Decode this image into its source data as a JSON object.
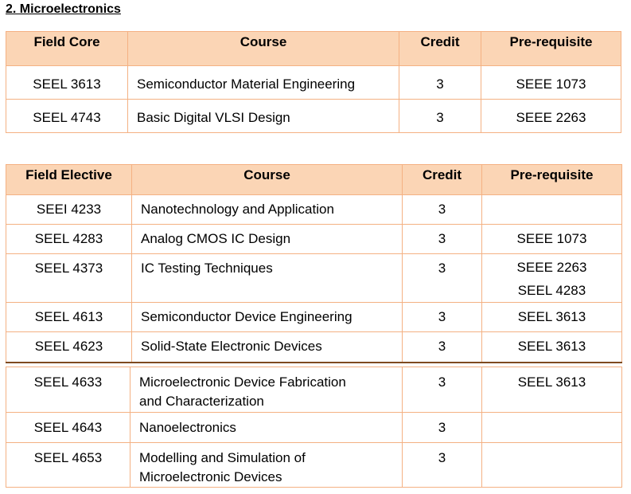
{
  "section_title": "2. Microelectronics",
  "core_table": {
    "headers": [
      "Field Core",
      "Course",
      "Credit",
      "Pre-requisite"
    ],
    "rows": [
      {
        "code": "SEEL 3613",
        "course": [
          "Semiconductor Material Engineering"
        ],
        "credit": "3",
        "prereq": [
          "SEEE 1073"
        ]
      },
      {
        "code": "SEEL 4743",
        "course": [
          "Basic Digital VLSI Design"
        ],
        "credit": "3",
        "prereq": [
          "SEEE 2263"
        ]
      }
    ]
  },
  "elective_table": {
    "headers": [
      "Field Elective",
      "Course",
      "Credit",
      "Pre-requisite"
    ],
    "rows": [
      {
        "code": "SEEI 4233",
        "course": [
          "Nanotechnology and Application"
        ],
        "credit": "3",
        "prereq": []
      },
      {
        "code": "SEEL 4283",
        "course": [
          "Analog CMOS IC Design"
        ],
        "credit": "3",
        "prereq": [
          "SEEE 1073"
        ]
      },
      {
        "code": "SEEL 4373",
        "course": [
          "IC Testing Techniques"
        ],
        "credit": "3",
        "prereq": [
          "SEEE 2263",
          "SEEL 4283"
        ]
      },
      {
        "code": "SEEL 4613",
        "course": [
          "Semiconductor Device Engineering"
        ],
        "credit": "3",
        "prereq": [
          "SEEL 3613"
        ]
      },
      {
        "code": "SEEL 4623",
        "course": [
          "Solid-State Electronic Devices"
        ],
        "credit": "3",
        "prereq": [
          "SEEL 3613"
        ]
      }
    ]
  },
  "elective_table_cont": {
    "rows": [
      {
        "code": "SEEL 4633",
        "course": [
          "Microelectronic Device Fabrication",
          "and Characterization"
        ],
        "credit": "3",
        "prereq": [
          "SEEL 3613"
        ]
      },
      {
        "code": "SEEL 4643",
        "course": [
          "Nanoelectronics"
        ],
        "credit": "3",
        "prereq": []
      },
      {
        "code": "SEEL 4653",
        "course": [
          "Modelling and Simulation of",
          "Microelectronic Devices"
        ],
        "credit": "3",
        "prereq": []
      }
    ]
  }
}
